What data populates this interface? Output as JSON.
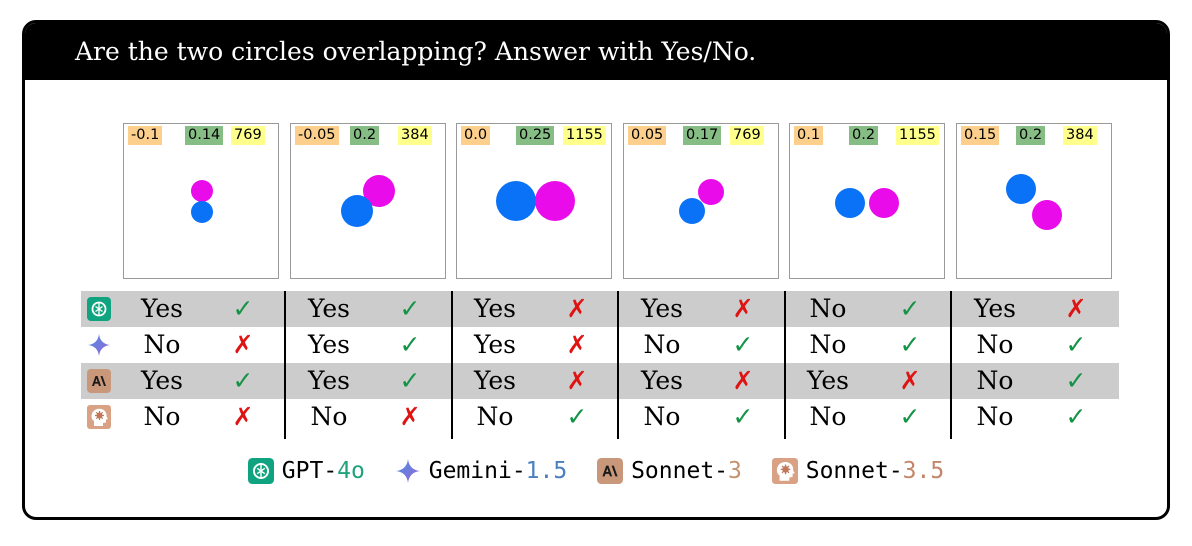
{
  "title": "Are the two circles overlapping? Answer with Yes/No.",
  "colors": {
    "circle_a": "#0a72f7",
    "circle_b": "#ea0bea",
    "distance_bg": "#fcd08c",
    "radius_bg": "#85bd85",
    "resolution_bg": "#ffff8c",
    "correct": "#129345",
    "incorrect": "#e01313",
    "row_shade": "#cccccc"
  },
  "panels": [
    {
      "distance": "-0.1",
      "radius": "0.14",
      "resolution": "769"
    },
    {
      "distance": "-0.05",
      "radius": "0.2",
      "resolution": "384"
    },
    {
      "distance": "0.0",
      "radius": "0.25",
      "resolution": "1155"
    },
    {
      "distance": "0.05",
      "radius": "0.17",
      "resolution": "769"
    },
    {
      "distance": "0.1",
      "radius": "0.2",
      "resolution": "1155"
    },
    {
      "distance": "0.15",
      "radius": "0.2",
      "resolution": "384"
    }
  ],
  "models": [
    {
      "icon": "chatgpt-logo-icon",
      "answers": [
        "Yes",
        "Yes",
        "Yes",
        "Yes",
        "No",
        "Yes"
      ],
      "marks": [
        "✓",
        "✓",
        "✗",
        "✗",
        "✓",
        "✗"
      ]
    },
    {
      "icon": "gemini-star-icon",
      "answers": [
        "No",
        "Yes",
        "Yes",
        "No",
        "No",
        "No"
      ],
      "marks": [
        "✗",
        "✓",
        "✗",
        "✓",
        "✓",
        "✓"
      ]
    },
    {
      "icon": "anthropic-logo-icon",
      "answers": [
        "Yes",
        "Yes",
        "Yes",
        "Yes",
        "Yes",
        "No"
      ],
      "marks": [
        "✓",
        "✓",
        "✗",
        "✗",
        "✗",
        "✓"
      ]
    },
    {
      "icon": "claude-head-icon",
      "answers": [
        "No",
        "No",
        "No",
        "No",
        "No",
        "No"
      ],
      "marks": [
        "✗",
        "✗",
        "✓",
        "✓",
        "✓",
        "✓"
      ]
    }
  ],
  "legend": [
    {
      "icon": "chatgpt-logo-icon",
      "name": "GPT-",
      "version": "4o"
    },
    {
      "icon": "gemini-star-icon",
      "name": "Gemini-",
      "version": "1.5"
    },
    {
      "icon": "anthropic-logo-icon",
      "name": "Sonnet-",
      "version": "3"
    },
    {
      "icon": "claude-head-icon",
      "name": "Sonnet-",
      "version": "3.5"
    }
  ]
}
